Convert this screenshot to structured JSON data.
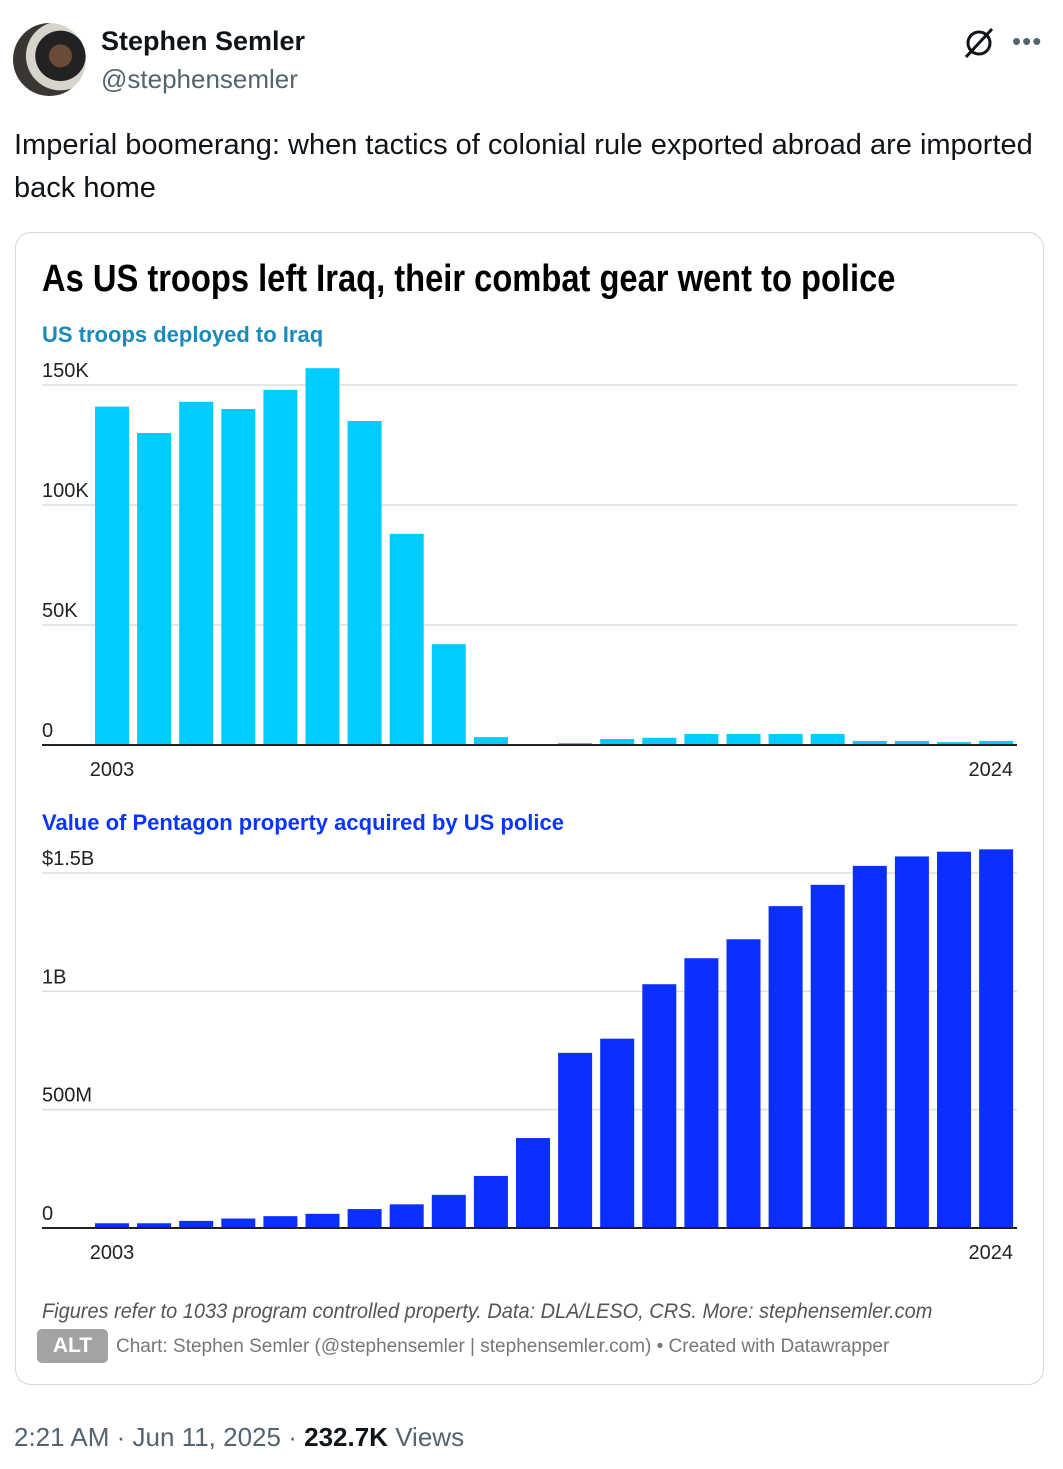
{
  "tweet": {
    "author_name": "Stephen Semler",
    "author_handle": "@stephensemler",
    "text": "Imperial boomerang: when tactics of colonial rule exported abroad are imported back home",
    "time": "2:21 AM",
    "date": "Jun 11, 2025",
    "separator": "·",
    "views_count": "232.7K",
    "views_label": "Views",
    "alt_badge": "ALT",
    "icons": [
      "grok-icon",
      "more-icon"
    ]
  },
  "figure": {
    "title": "As US troops left Iraq, their combat gear went to police",
    "note": "Figures refer to 1033 program controlled property. Data: DLA/LESO, CRS. More: stephensemler.com",
    "credit": "Chart: Stephen Semler (@stephensemler | stephensemler.com) • Created with Datawrapper"
  },
  "chart_data": [
    {
      "type": "bar",
      "title": "US troops deployed to Iraq",
      "color": "#00ccff",
      "categories": [
        2003,
        2004,
        2005,
        2006,
        2007,
        2008,
        2009,
        2010,
        2011,
        2012,
        2013,
        2014,
        2015,
        2016,
        2017,
        2018,
        2019,
        2020,
        2021,
        2022,
        2023,
        2024
      ],
      "values": [
        141000,
        130000,
        143000,
        140000,
        148000,
        157000,
        135000,
        88000,
        42000,
        3300,
        400,
        800,
        2500,
        3000,
        4600,
        4600,
        4600,
        4600,
        1700,
        1700,
        1200,
        1700
      ],
      "x_tick_labels": [
        "2003",
        "2024"
      ],
      "y_ticks": [
        0,
        50000,
        100000,
        150000
      ],
      "y_tick_labels": [
        "0",
        "50K",
        "100K",
        "150K"
      ],
      "ylim": [
        0,
        150000
      ],
      "grid": true
    },
    {
      "type": "bar",
      "title": "Value of Pentagon property acquired by US police",
      "color": "#0a2fff",
      "categories": [
        2003,
        2004,
        2005,
        2006,
        2007,
        2008,
        2009,
        2010,
        2011,
        2012,
        2013,
        2014,
        2015,
        2016,
        2017,
        2018,
        2019,
        2020,
        2021,
        2022,
        2023,
        2024
      ],
      "values": [
        0.02,
        0.02,
        0.03,
        0.04,
        0.05,
        0.06,
        0.08,
        0.1,
        0.14,
        0.22,
        0.38,
        0.74,
        0.8,
        1.03,
        1.14,
        1.22,
        1.36,
        1.45,
        1.53,
        1.57,
        1.59,
        1.6
      ],
      "units": "USD billions",
      "x_tick_labels": [
        "2003",
        "2024"
      ],
      "y_ticks": [
        0,
        0.5,
        1,
        1.5
      ],
      "y_tick_labels": [
        "0",
        "500M",
        "1B",
        "$1.5B"
      ],
      "ylim": [
        0,
        1.5
      ],
      "grid": true
    }
  ]
}
